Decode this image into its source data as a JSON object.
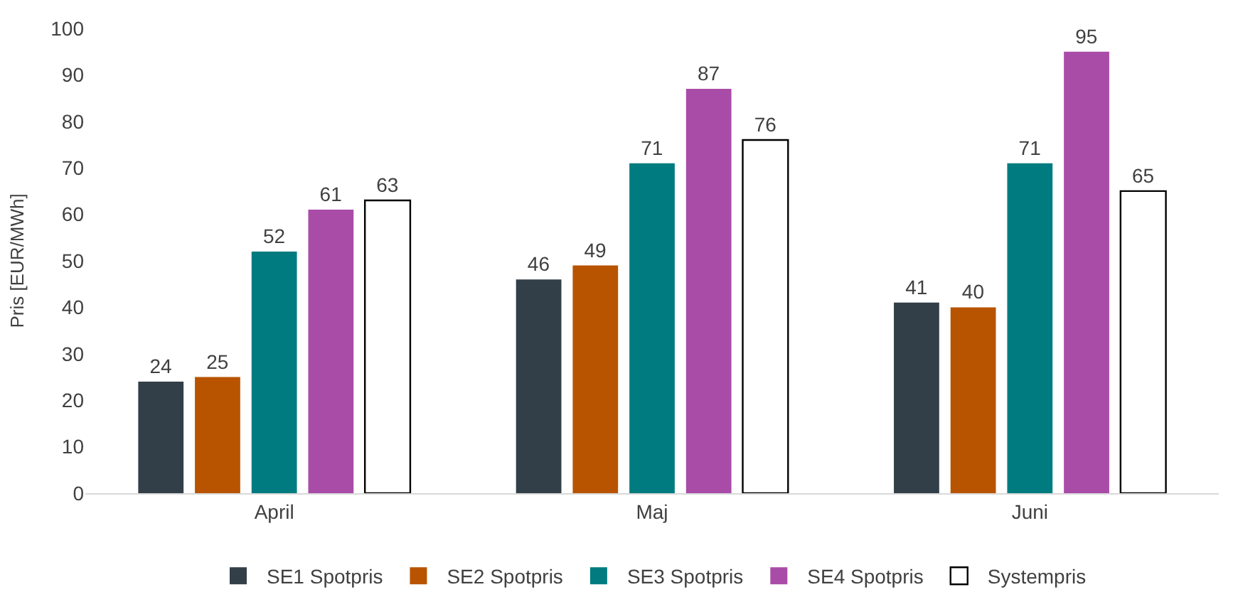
{
  "chart_data": {
    "type": "bar",
    "ylabel": "Pris [EUR/MWh]",
    "categories": [
      "April",
      "Maj",
      "Juni"
    ],
    "series": [
      {
        "name": "SE1 Spotpris",
        "color": "#333f48",
        "values": [
          24,
          46,
          41
        ]
      },
      {
        "name": "SE2 Spotpris",
        "color": "#b85400",
        "values": [
          25,
          49,
          40
        ]
      },
      {
        "name": "SE3 Spotpris",
        "color": "#007c80",
        "values": [
          52,
          71,
          71
        ]
      },
      {
        "name": "SE4 Spotpris",
        "color": "#a94ca8",
        "values": [
          61,
          87,
          95
        ]
      },
      {
        "name": "Systempris",
        "color": "#ffffff",
        "values": [
          63,
          76,
          65
        ]
      }
    ],
    "ylim": [
      0,
      100
    ],
    "yticks": [
      0,
      10,
      20,
      30,
      40,
      50,
      60,
      70,
      80,
      90,
      100
    ],
    "grid": false,
    "legend": "bottom",
    "data_labels": true
  }
}
